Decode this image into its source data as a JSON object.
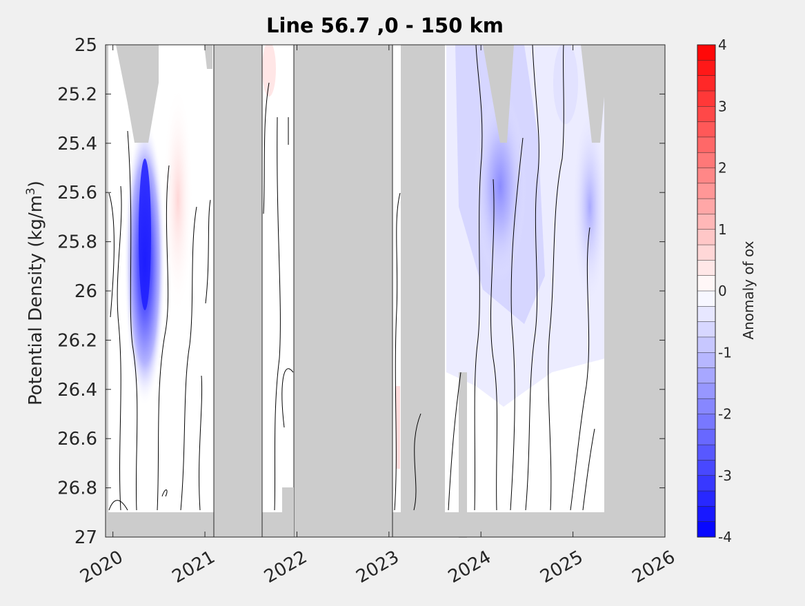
{
  "chart_data": {
    "type": "heatmap",
    "title": "Line 56.7 ,0 - 150 km",
    "xlabel": "",
    "ylabel": "Potential Density (kg/m",
    "ylabel_superscript": "3",
    "ylabel_suffix": ")",
    "xlim": [
      2019.92,
      2026
    ],
    "ylim": [
      25,
      27
    ],
    "y_reversed": true,
    "x_ticks": [
      "2020",
      "2021",
      "2022",
      "2023",
      "2024",
      "2025",
      "2026"
    ],
    "y_ticks": [
      "25",
      "25.2",
      "25.4",
      "25.6",
      "25.8",
      "26",
      "26.2",
      "26.4",
      "26.6",
      "26.8",
      "27"
    ],
    "colorbar": {
      "label": "Anomaly of ox",
      "range": [
        -4,
        4
      ],
      "levels": 32,
      "ticks": [
        "4",
        "3",
        "2",
        "1",
        "0",
        "-1",
        "-2",
        "-3",
        "-4"
      ]
    },
    "no_data_periods": [
      {
        "start": 2021.1,
        "end": 2021.62
      },
      {
        "start": 2021.96,
        "end": 2023.04
      },
      {
        "start": 2023.1,
        "end": 2023.6
      }
    ],
    "anomaly_features": [
      {
        "description": "strong negative",
        "x": 2020.38,
        "y_range": [
          25.4,
          26.6
        ],
        "min_value": -3.6
      },
      {
        "description": "weak positive",
        "x": 2020.75,
        "y_range": [
          25.0,
          26.0
        ],
        "max_value": 0.4
      },
      {
        "description": "moderate negative",
        "x": 2024.25,
        "y_range": [
          25.0,
          26.4
        ],
        "min_value": -1.6
      },
      {
        "description": "weak negative",
        "x": 2025.25,
        "y_range": [
          25.3,
          26.2
        ],
        "min_value": -1.0
      }
    ],
    "colors": {
      "negative": "#0000ff",
      "positive": "#ff0000",
      "no_data": "#cccccc"
    }
  }
}
